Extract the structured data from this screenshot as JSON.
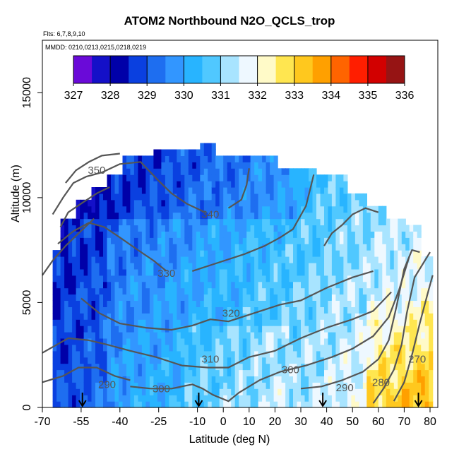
{
  "title": "ATOM2 Northbound N2O_QCLS_trop",
  "subtitle_flights": "Flts: 6,7,8,9,10",
  "subtitle_dates": "MMDD: 0210,0213,0215,0218,0219",
  "colors": {
    "scale": [
      "#6a0ad8",
      "#1410c8",
      "#0000a8",
      "#0a40e0",
      "#1e6ef0",
      "#3296ff",
      "#28b4ff",
      "#50c8ff",
      "#a8e4ff",
      "#eef8ff",
      "#fffac8",
      "#ffe650",
      "#ffc81e",
      "#ffa000",
      "#ff6400",
      "#ff1e00",
      "#d20000",
      "#961414"
    ],
    "contour": "#555555"
  },
  "chart_data": {
    "type": "heatmap",
    "title": "ATOM2 Northbound N2O_QCLS_trop",
    "xlabel": "Latitude (deg N)",
    "ylabel": "Altitude (m)",
    "xlim": [
      -70,
      83
    ],
    "ylim": [
      0,
      17500
    ],
    "x_ticks": [
      -70,
      -55,
      -40,
      -25,
      -10,
      0,
      10,
      20,
      30,
      40,
      50,
      60,
      70,
      80
    ],
    "x_tick_labels": [
      "-70",
      "-55",
      "-40",
      "-25",
      "-10",
      "0",
      "10",
      "20",
      "30",
      "40",
      "50",
      "60",
      "70",
      "80"
    ],
    "y_ticks": [
      0,
      5000,
      10000,
      15000
    ],
    "y_tick_labels": [
      "0",
      "5000",
      "10000",
      "15000"
    ],
    "colorbar": {
      "min": 327,
      "max": 336,
      "ticks": [
        327,
        328,
        329,
        330,
        331,
        332,
        333,
        334,
        335,
        336
      ],
      "tick_labels": [
        "327",
        "328",
        "329",
        "330",
        "331",
        "332",
        "333",
        "334",
        "335",
        "336"
      ]
    },
    "contour_labels": [
      {
        "text": "350",
        "x": -49,
        "y": 11300
      },
      {
        "text": "340",
        "x": -5,
        "y": 9200
      },
      {
        "text": "330",
        "x": -22,
        "y": 6400
      },
      {
        "text": "320",
        "x": 3,
        "y": 4500
      },
      {
        "text": "310",
        "x": -5,
        "y": 2300
      },
      {
        "text": "300",
        "x": 26,
        "y": 1800
      },
      {
        "text": "300",
        "x": -24,
        "y": 900
      },
      {
        "text": "290",
        "x": -45,
        "y": 1100
      },
      {
        "text": "290",
        "x": 47,
        "y": 950
      },
      {
        "text": "280",
        "x": 61,
        "y": 1200
      },
      {
        "text": "270",
        "x": 75,
        "y": 2300
      }
    ],
    "flight_arrow_latitudes": [
      -54.5,
      -9.5,
      38.5,
      75.5
    ]
  }
}
